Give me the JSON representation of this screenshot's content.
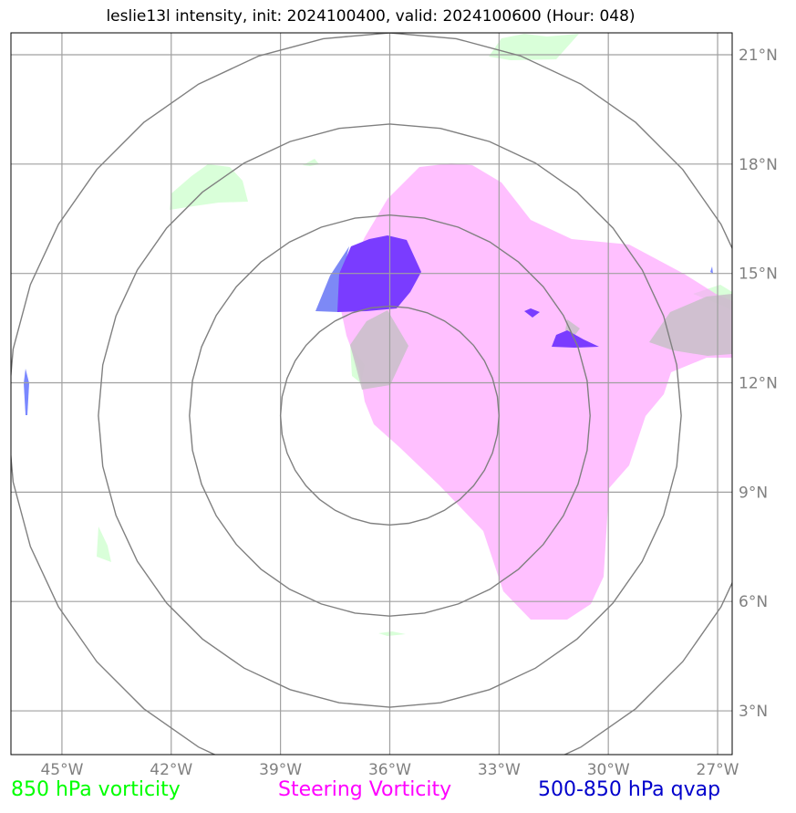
{
  "title": "leslie13l intensity, init: 2024100400, valid: 2024100600 (Hour: 048)",
  "colors": {
    "vorticity_850": "#00ff00",
    "steering_vorticity": "#ff00ff",
    "qvap_500_850": "#0000cc",
    "range_rings": "#808080",
    "grid": "#a0a0a0"
  },
  "legend": {
    "vorticity_850": "850 hPa vorticity",
    "steering_vorticity": "Steering Vorticity",
    "qvap_500_850": "500-850 hPa qvap"
  },
  "map": {
    "lon_range": [
      -46.4,
      -26.6
    ],
    "lat_range": [
      1.8,
      21.6
    ],
    "lon_ticks": [
      {
        "value": -45,
        "label": "45°W"
      },
      {
        "value": -42,
        "label": "42°W"
      },
      {
        "value": -39,
        "label": "39°W"
      },
      {
        "value": -36,
        "label": "36°W"
      },
      {
        "value": -33,
        "label": "33°W"
      },
      {
        "value": -30,
        "label": "30°W"
      },
      {
        "value": -27,
        "label": "27°W"
      }
    ],
    "lat_ticks": [
      {
        "value": 3,
        "label": "3°N"
      },
      {
        "value": 6,
        "label": "6°N"
      },
      {
        "value": 9,
        "label": "9°N"
      },
      {
        "value": 12,
        "label": "12°N"
      },
      {
        "value": 15,
        "label": "15°N"
      },
      {
        "value": 18,
        "label": "18°N"
      },
      {
        "value": 21,
        "label": "21°N"
      }
    ],
    "storm_center": {
      "lon": -36.0,
      "lat": 11.1
    },
    "range_ring_radii_deg": [
      3,
      5.5,
      8,
      10.5
    ]
  }
}
